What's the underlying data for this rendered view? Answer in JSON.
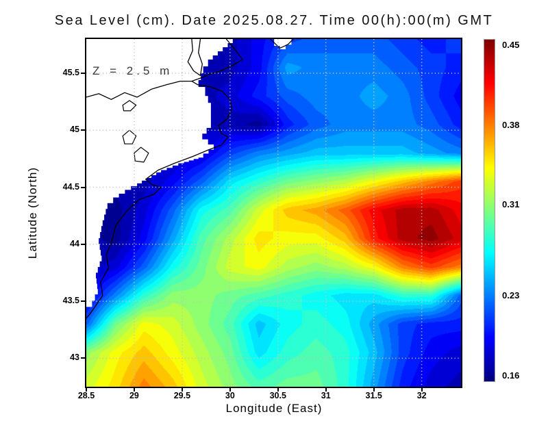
{
  "title": "Sea Level (cm). Date 2025.08.27. Time 00(h):00(m) GMT",
  "annotation": "Z = 2.5 m",
  "axes": {
    "x": {
      "label": "Longitude (East)",
      "range": [
        28.5,
        32.41
      ],
      "ticks": [
        {
          "v": 28.5,
          "label": "28.5"
        },
        {
          "v": 29,
          "label": "29"
        },
        {
          "v": 29.5,
          "label": "29.5"
        },
        {
          "v": 30,
          "label": "30"
        },
        {
          "v": 30.5,
          "label": "30.5"
        },
        {
          "v": 31,
          "label": "31"
        },
        {
          "v": 31.5,
          "label": "31.5"
        },
        {
          "v": 32,
          "label": "32"
        }
      ]
    },
    "y": {
      "label": "Latitude (North)",
      "range": [
        42.75,
        45.8
      ],
      "ticks": [
        {
          "v": 43,
          "label": "43"
        },
        {
          "v": 43.5,
          "label": "43.5"
        },
        {
          "v": 44,
          "label": "44"
        },
        {
          "v": 44.5,
          "label": "44.5"
        },
        {
          "v": 45,
          "label": "45"
        },
        {
          "v": 45.5,
          "label": "45.5"
        }
      ]
    }
  },
  "colorbar": {
    "min": 0.155,
    "max": 0.455,
    "colormap": "jet",
    "ticks": [
      {
        "v": 0.45,
        "label": "0.45"
      },
      {
        "v": 0.38,
        "label": "0.38"
      },
      {
        "v": 0.31,
        "label": "0.31"
      },
      {
        "v": 0.23,
        "label": "0.23"
      },
      {
        "v": 0.16,
        "label": "0.16"
      }
    ]
  },
  "chart_data": {
    "type": "heatmap",
    "title": "Sea Level (cm). Date 2025.08.27. Time 00(h):00(m) GMT",
    "xlabel": "Longitude (East)",
    "ylabel": "Latitude (North)",
    "annotation": "Z = 2.5 m",
    "grid": "dotted",
    "legend_position": "right-colorbar",
    "value_range": [
      0.16,
      0.45
    ],
    "lon": [
      28.5,
      28.8,
      29.1,
      29.4,
      29.7,
      30.0,
      30.3,
      30.6,
      30.9,
      31.2,
      31.5,
      31.8,
      32.1,
      32.41
    ],
    "lat": [
      45.8,
      45.55,
      45.3,
      45.05,
      44.8,
      44.55,
      44.3,
      44.05,
      43.8,
      43.55,
      43.3,
      43.05,
      42.75
    ],
    "values": [
      [
        null,
        null,
        null,
        null,
        null,
        null,
        0.19,
        0.21,
        0.22,
        0.22,
        0.22,
        0.21,
        0.2,
        0.21
      ],
      [
        null,
        null,
        null,
        null,
        null,
        null,
        0.19,
        0.24,
        0.23,
        0.23,
        0.23,
        0.22,
        0.21,
        0.2
      ],
      [
        null,
        null,
        null,
        null,
        null,
        0.18,
        0.2,
        0.22,
        0.23,
        0.23,
        0.24,
        0.23,
        0.21,
        0.19
      ],
      [
        null,
        null,
        null,
        null,
        null,
        0.17,
        0.16,
        0.2,
        0.22,
        0.23,
        0.23,
        0.23,
        0.22,
        0.2
      ],
      [
        null,
        null,
        null,
        null,
        0.18,
        0.21,
        0.23,
        0.24,
        0.25,
        0.25,
        0.25,
        0.25,
        0.24,
        0.23
      ],
      [
        null,
        null,
        null,
        0.19,
        0.22,
        0.26,
        0.28,
        0.3,
        0.31,
        0.32,
        0.34,
        0.36,
        0.38,
        0.4
      ],
      [
        null,
        0.16,
        0.18,
        0.22,
        0.27,
        0.29,
        0.33,
        0.36,
        0.37,
        0.39,
        0.42,
        0.44,
        0.44,
        0.42
      ],
      [
        null,
        0.16,
        0.19,
        0.24,
        0.29,
        0.32,
        0.35,
        0.34,
        0.34,
        0.36,
        0.41,
        0.44,
        0.45,
        0.43
      ],
      [
        null,
        0.18,
        0.22,
        0.27,
        0.3,
        0.33,
        0.34,
        0.32,
        0.31,
        0.32,
        0.34,
        0.38,
        0.4,
        0.38
      ],
      [
        0.18,
        0.23,
        0.28,
        0.31,
        0.31,
        0.3,
        0.29,
        0.28,
        0.27,
        0.26,
        0.26,
        0.28,
        0.28,
        0.22
      ],
      [
        0.22,
        0.3,
        0.34,
        0.33,
        0.31,
        0.29,
        0.25,
        0.27,
        0.28,
        0.27,
        0.24,
        0.21,
        0.2,
        0.2
      ],
      [
        0.31,
        0.34,
        0.36,
        0.34,
        0.32,
        0.3,
        0.26,
        0.28,
        0.29,
        0.28,
        0.25,
        0.21,
        0.19,
        0.18
      ],
      [
        0.33,
        0.35,
        0.38,
        0.36,
        0.33,
        0.31,
        0.29,
        0.3,
        0.3,
        0.28,
        0.24,
        0.2,
        0.18,
        0.17
      ]
    ],
    "land_fill": "#ffffff",
    "coast_color": "#000000",
    "gridline_color": "#c4c4c4",
    "land_mask": [
      [
        [
          30.08,
          45.8
        ],
        [
          29.82,
          45.62
        ],
        [
          29.72,
          45.5
        ],
        [
          29.67,
          45.38
        ],
        [
          29.74,
          45.3
        ],
        [
          29.8,
          45.18
        ],
        [
          29.8,
          45.02
        ],
        [
          29.71,
          44.92
        ],
        [
          29.83,
          44.83
        ],
        [
          29.72,
          44.76
        ],
        [
          29.52,
          44.71
        ],
        [
          29.28,
          44.63
        ],
        [
          29.03,
          44.51
        ],
        [
          28.84,
          44.41
        ],
        [
          28.72,
          44.31
        ],
        [
          28.67,
          44.16
        ],
        [
          28.63,
          44.0
        ],
        [
          28.66,
          43.85
        ],
        [
          28.6,
          43.7
        ],
        [
          28.62,
          43.56
        ],
        [
          28.56,
          43.45
        ],
        [
          28.5,
          43.38
        ],
        [
          28.5,
          45.8
        ]
      ],
      [
        [
          30.4,
          45.8
        ],
        [
          30.46,
          45.74
        ],
        [
          30.52,
          45.71
        ],
        [
          30.58,
          45.75
        ],
        [
          30.64,
          45.8
        ]
      ]
    ],
    "coastlines": [
      [
        [
          29.6,
          45.8
        ],
        [
          29.61,
          45.7
        ],
        [
          29.56,
          45.6
        ],
        [
          29.62,
          45.52
        ],
        [
          29.69,
          45.48
        ],
        [
          29.71,
          45.58
        ],
        [
          29.67,
          45.68
        ],
        [
          29.69,
          45.8
        ]
      ],
      [
        [
          29.96,
          45.8
        ],
        [
          30.06,
          45.7
        ],
        [
          30.13,
          45.62
        ],
        [
          30.03,
          45.57
        ],
        [
          29.9,
          45.52
        ],
        [
          29.78,
          45.49
        ],
        [
          29.7,
          45.46
        ],
        [
          29.6,
          45.43
        ],
        [
          29.66,
          45.4
        ],
        [
          29.8,
          45.38
        ],
        [
          29.92,
          45.34
        ],
        [
          30.0,
          45.27
        ],
        [
          30.02,
          45.19
        ],
        [
          29.97,
          45.1
        ],
        [
          29.88,
          45.04
        ],
        [
          29.91,
          44.97
        ],
        [
          29.98,
          44.94
        ],
        [
          29.91,
          44.87
        ],
        [
          29.78,
          44.83
        ],
        [
          29.61,
          44.77
        ],
        [
          29.42,
          44.71
        ],
        [
          29.25,
          44.65
        ],
        [
          29.12,
          44.57
        ],
        [
          29.19,
          44.52
        ],
        [
          29.28,
          44.5
        ],
        [
          29.21,
          44.44
        ],
        [
          29.05,
          44.39
        ],
        [
          28.92,
          44.29
        ],
        [
          28.81,
          44.17
        ],
        [
          28.77,
          44.04
        ],
        [
          28.71,
          43.91
        ],
        [
          28.73,
          43.79
        ],
        [
          28.65,
          43.67
        ],
        [
          28.67,
          43.55
        ],
        [
          28.59,
          43.45
        ],
        [
          28.54,
          43.39
        ],
        [
          28.5,
          43.35
        ]
      ],
      [
        [
          28.5,
          45.29
        ],
        [
          28.63,
          45.32
        ],
        [
          28.76,
          45.27
        ],
        [
          28.9,
          45.33
        ],
        [
          29.03,
          45.29
        ],
        [
          29.18,
          45.36
        ],
        [
          29.34,
          45.4
        ],
        [
          29.48,
          45.43
        ],
        [
          29.6,
          45.43
        ]
      ],
      [
        [
          30.42,
          45.8
        ],
        [
          30.52,
          45.72
        ],
        [
          30.6,
          45.75
        ],
        [
          30.66,
          45.8
        ]
      ]
    ],
    "lakes": [
      [
        [
          28.88,
          45.22
        ],
        [
          28.95,
          45.26
        ],
        [
          29.02,
          45.22
        ],
        [
          28.96,
          45.17
        ],
        [
          28.89,
          45.17
        ]
      ],
      [
        [
          28.88,
          44.95
        ],
        [
          28.95,
          45.0
        ],
        [
          29.02,
          44.95
        ],
        [
          28.98,
          44.88
        ],
        [
          28.9,
          44.88
        ]
      ],
      [
        [
          29.0,
          44.8
        ],
        [
          29.07,
          44.85
        ],
        [
          29.15,
          44.8
        ],
        [
          29.1,
          44.72
        ],
        [
          29.01,
          44.73
        ]
      ]
    ]
  }
}
